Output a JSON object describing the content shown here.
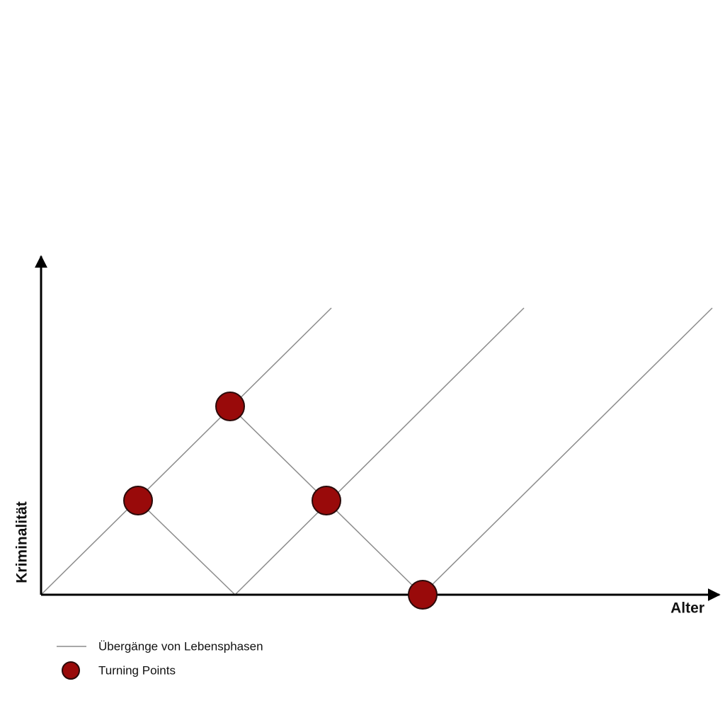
{
  "axes": {
    "y_label": "Kriminalität",
    "x_label": "Alter"
  },
  "legend": {
    "items": [
      {
        "label": "Übergänge von Lebensphasen"
      },
      {
        "label": "Turning Points"
      }
    ]
  }
}
